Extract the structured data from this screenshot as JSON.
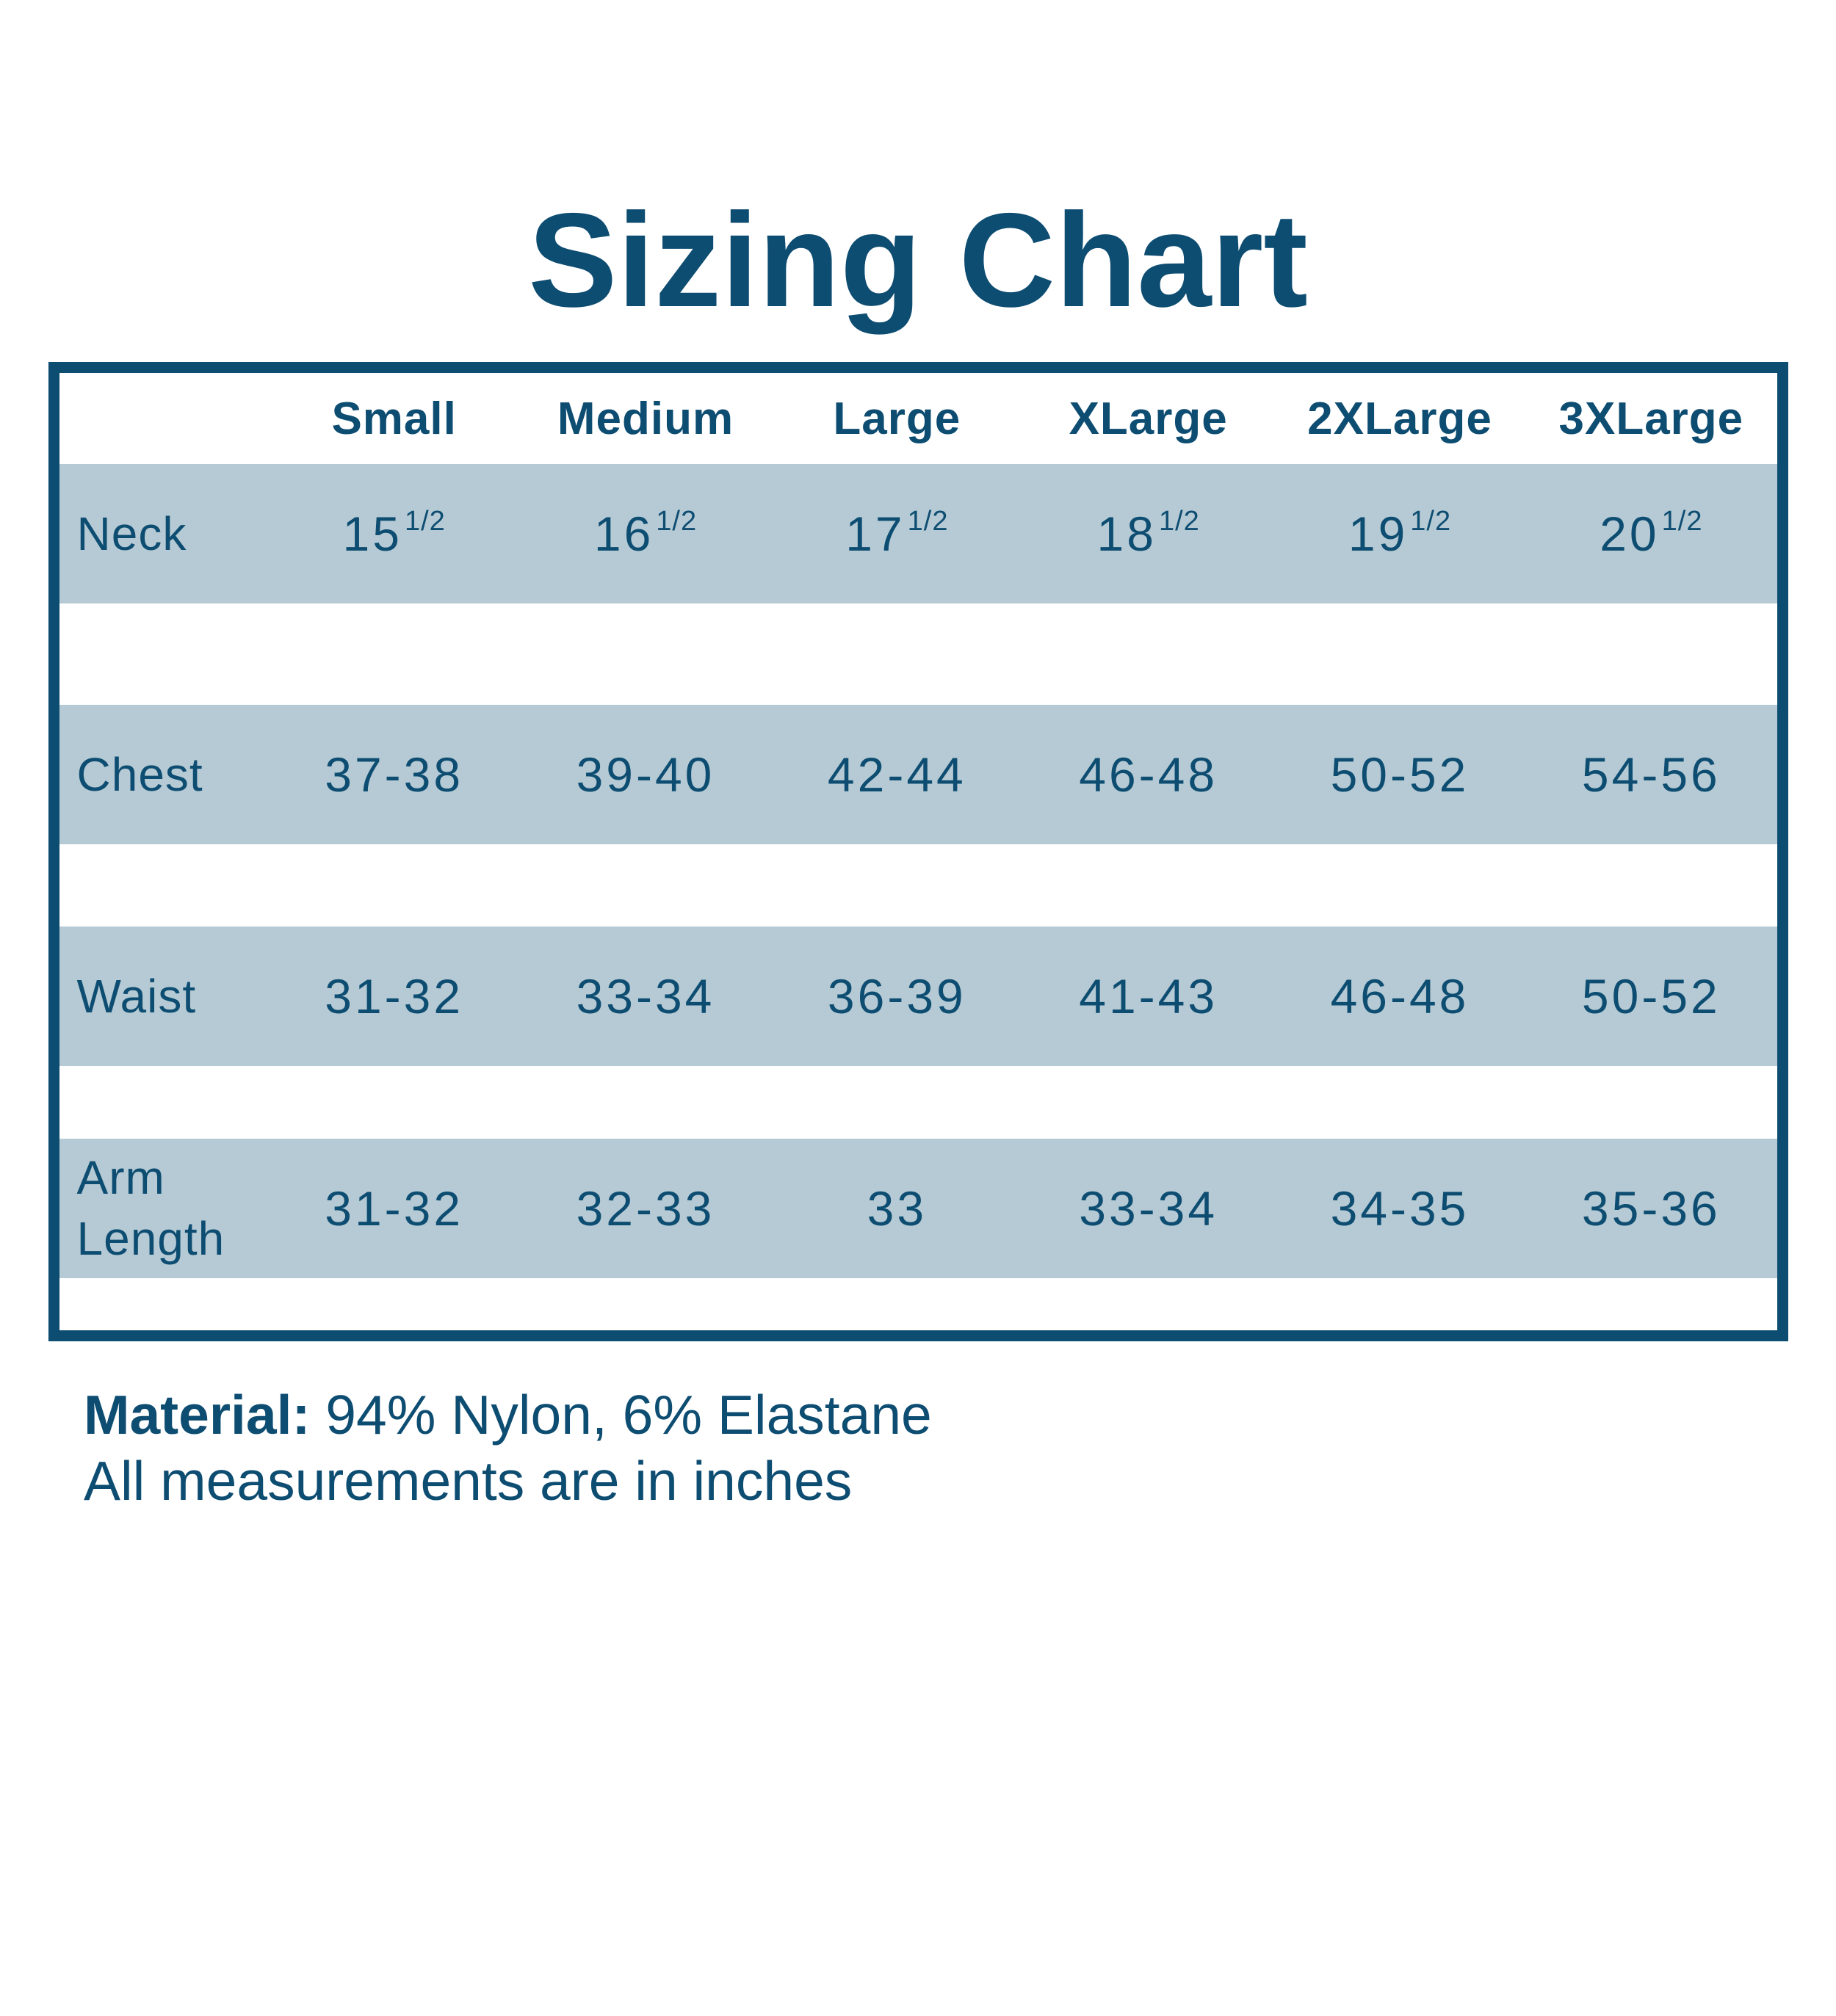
{
  "page": {
    "title": "Sizing Chart"
  },
  "colors": {
    "primary_dark_blue": "#0e4d72",
    "row_highlight_blue": "#b5cad4",
    "background": "#ffffff"
  },
  "table": {
    "corner_label": "",
    "columns": [
      "Small",
      "Medium",
      "Large",
      "XLarge",
      "2XLarge",
      "3XLarge"
    ],
    "rows": [
      {
        "label": "Neck",
        "values": [
          {
            "base": "15",
            "sup": "1/2"
          },
          {
            "base": "16",
            "sup": "1/2"
          },
          {
            "base": "17",
            "sup": "1/2"
          },
          {
            "base": "18",
            "sup": "1/2"
          },
          {
            "base": "19",
            "sup": "1/2"
          },
          {
            "base": "20",
            "sup": "1/2"
          }
        ]
      },
      {
        "label": "Chest",
        "values": [
          "37-38",
          "39-40",
          "42-44",
          "46-48",
          "50-52",
          "54-56"
        ]
      },
      {
        "label": "Waist",
        "values": [
          "31-32",
          "33-34",
          "36-39",
          "41-43",
          "46-48",
          "50-52"
        ]
      },
      {
        "label": "Arm Length",
        "values": [
          "31-32",
          "32-33",
          "33",
          "33-34",
          "34-35",
          "35-36"
        ]
      }
    ]
  },
  "notes": {
    "material_label": "Material:",
    "material_value": "94% Nylon, 6% Elastane",
    "measurements_note": "All measurements are in inches"
  },
  "chart_data": {
    "type": "table",
    "title": "Sizing Chart",
    "categories": [
      "Small",
      "Medium",
      "Large",
      "XLarge",
      "2XLarge",
      "3XLarge"
    ],
    "series": [
      {
        "name": "Neck",
        "values": [
          "15 1/2",
          "16 1/2",
          "17 1/2",
          "18 1/2",
          "19 1/2",
          "20 1/2"
        ]
      },
      {
        "name": "Chest",
        "values": [
          "37-38",
          "39-40",
          "42-44",
          "46-48",
          "50-52",
          "54-56"
        ]
      },
      {
        "name": "Waist",
        "values": [
          "31-32",
          "33-34",
          "36-39",
          "41-43",
          "46-48",
          "50-52"
        ]
      },
      {
        "name": "Arm Length",
        "values": [
          "31-32",
          "32-33",
          "33",
          "33-34",
          "34-35",
          "35-36"
        ]
      }
    ],
    "notes": [
      "Material: 94% Nylon, 6% Elastane",
      "All measurements are in inches"
    ]
  }
}
